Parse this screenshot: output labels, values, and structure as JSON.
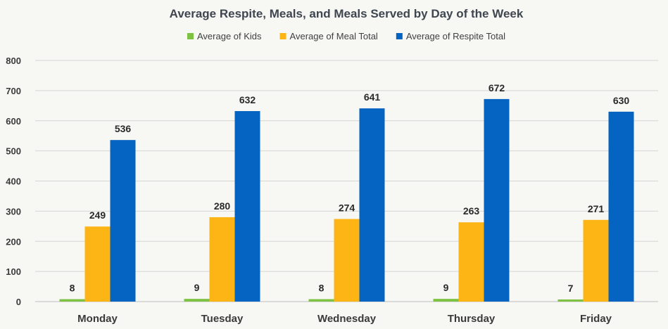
{
  "chart_data": {
    "type": "bar",
    "title": "Average Respite, Meals, and Meals Served by Day of the Week",
    "categories": [
      "Monday",
      "Tuesday",
      "Wednesday",
      "Thursday",
      "Friday"
    ],
    "series": [
      {
        "name": "Average of Kids",
        "color": "#7dc242",
        "values": [
          8,
          9,
          8,
          9,
          7
        ]
      },
      {
        "name": "Average of Meal Total",
        "color": "#fdb515",
        "values": [
          249,
          280,
          274,
          263,
          271
        ]
      },
      {
        "name": "Average of Respite Total",
        "color": "#0563c1",
        "values": [
          536,
          632,
          641,
          672,
          630
        ]
      }
    ],
    "ylim": [
      0,
      800
    ],
    "yticks": [
      0,
      100,
      200,
      300,
      400,
      500,
      600,
      700,
      800
    ],
    "grid": true,
    "legend_position": "top-center",
    "data_labels_shown": true,
    "xlabel": "",
    "ylabel": ""
  }
}
